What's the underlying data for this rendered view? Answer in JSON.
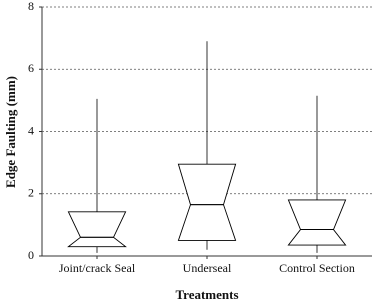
{
  "chart_data": {
    "type": "box",
    "y_label": "Edge Faulting (mm)",
    "x_label": "Treatments",
    "categories": [
      "Joint/crack Seal",
      "Underseal",
      "Control Section"
    ],
    "low": [
      0.1,
      0.2,
      0.1
    ],
    "q1": [
      0.3,
      0.5,
      0.35
    ],
    "median": [
      0.6,
      1.65,
      0.85
    ],
    "q3": [
      1.42,
      2.95,
      1.8
    ],
    "high": [
      5.05,
      6.9,
      5.15
    ],
    "color": "#000000",
    "ylim": [
      0,
      8
    ],
    "yticks": [
      0,
      2,
      4,
      6,
      8
    ],
    "grid": true
  }
}
